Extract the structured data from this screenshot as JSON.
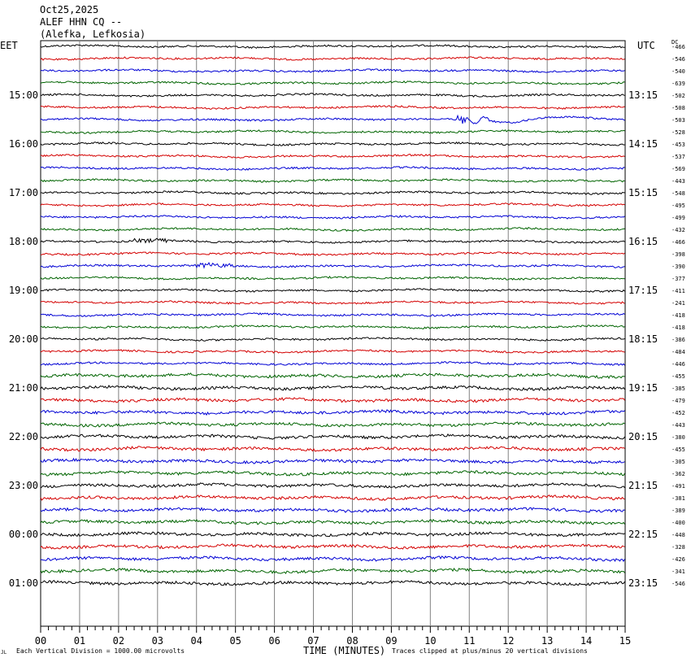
{
  "header": {
    "date": "Oct25,2025",
    "station": "ALEF HHN CQ --",
    "location": "(Alefka, Lefkosia)"
  },
  "left_axis_title": "EET",
  "right_axis_title": "UTC",
  "dc_title": "DC",
  "footer": {
    "scale_note": "Each Vertical Division = 1000.00 microvolts",
    "x_title": "TIME (MINUTES)",
    "clip_note": "Traces clipped at plus/minus 20 vertical divisions",
    "corner_mark": "JL"
  },
  "chart_data": {
    "type": "line",
    "subtype": "helicorder",
    "x": {
      "label": "TIME (MINUTES)",
      "range": [
        0,
        15
      ],
      "ticks": [
        "00",
        "01",
        "02",
        "03",
        "04",
        "05",
        "06",
        "07",
        "08",
        "09",
        "10",
        "11",
        "12",
        "13",
        "14",
        "15"
      ]
    },
    "grid": true,
    "trace_colors": [
      "#000000",
      "#d40000",
      "#0000d4",
      "#006400"
    ],
    "left_time_labels": [
      "15:00",
      "16:00",
      "17:00",
      "18:00",
      "19:00",
      "20:00",
      "21:00",
      "22:00",
      "23:00",
      "00:00",
      "01:00"
    ],
    "right_time_labels": [
      "13:15",
      "14:15",
      "15:15",
      "16:15",
      "17:15",
      "18:15",
      "19:15",
      "20:15",
      "21:15",
      "22:15",
      "23:15"
    ],
    "dc_offsets": [
      -466,
      -546,
      -540,
      -639,
      -502,
      -508,
      -503,
      -528,
      -453,
      -537,
      -569,
      -443,
      -548,
      -495,
      -499,
      -432,
      -466,
      -398,
      -390,
      -377,
      -411,
      -241,
      -418,
      -418,
      -386,
      -484,
      -446,
      -455,
      -385,
      -479,
      -452,
      -443,
      -380,
      -455,
      -305,
      -362,
      -491,
      -381,
      -389,
      -400,
      -448,
      -328,
      -426,
      -341,
      -546
    ],
    "noise_levels": [
      1,
      1,
      1,
      1,
      1,
      1,
      1,
      1,
      1,
      1,
      1,
      1,
      1,
      1,
      1,
      1,
      1,
      1,
      1,
      1,
      1,
      1,
      1,
      1,
      1,
      1,
      1,
      1.5,
      1.5,
      1.5,
      1.5,
      1.5,
      1.5,
      1.5,
      1.5,
      1.5,
      1.5,
      1.5,
      1.5,
      1.5,
      1.5,
      1.5,
      1.5,
      1.5,
      1.5
    ],
    "events": [
      {
        "trace": 6,
        "start_min": 10.7,
        "end_min": 15,
        "description": "wave arrival"
      },
      {
        "trace": 16,
        "start_min": 2.4,
        "end_min": 3.4,
        "description": "small burst"
      },
      {
        "trace": 18,
        "start_min": 4.0,
        "end_min": 5.0,
        "description": "small burst"
      }
    ]
  }
}
